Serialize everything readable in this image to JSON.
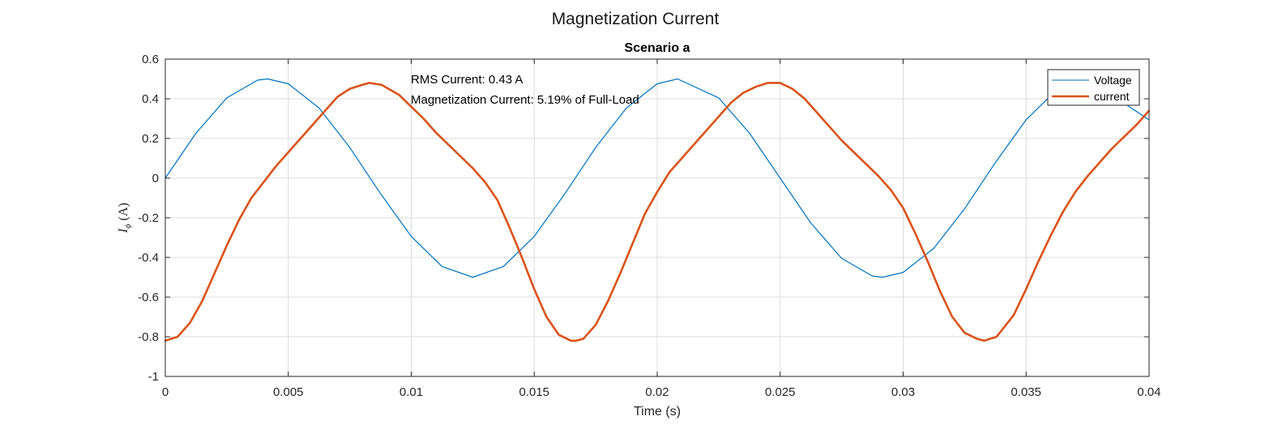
{
  "figure": {
    "title": "Magnetization Current"
  },
  "chart_data": {
    "type": "line",
    "title": "Scenario a",
    "xlabel": "Time (s)",
    "ylabel": "I_ϕ (A)",
    "ylabel_main": "I",
    "ylabel_sub": "ϕ",
    "ylabel_unit": "(A)",
    "xlim": [
      0,
      0.04
    ],
    "ylim": [
      -1,
      0.6
    ],
    "xticks": [
      0,
      0.005,
      0.01,
      0.015,
      0.02,
      0.025,
      0.03,
      0.035,
      0.04
    ],
    "xtick_labels": [
      "0",
      "0.005",
      "0.01",
      "0.015",
      "0.02",
      "0.025",
      "0.03",
      "0.035",
      "0.04"
    ],
    "yticks": [
      -1,
      -0.8,
      -0.6,
      -0.4,
      -0.2,
      0,
      0.2,
      0.4,
      0.6
    ],
    "ytick_labels": [
      "-1",
      "-0.8",
      "-0.6",
      "-0.4",
      "-0.2",
      "0",
      "0.2",
      "0.4",
      "0.6"
    ],
    "grid": true,
    "legend_position": "top-right",
    "annotations": [
      "RMS Current: 0.43 A",
      "Magnetization Current: 5.19% of Full-Load"
    ],
    "series": [
      {
        "name": "Voltage",
        "color": "#0072BD",
        "x": [
          0,
          0.00125,
          0.0025,
          0.00375,
          0.004167,
          0.005,
          0.00625,
          0.0075,
          0.00875,
          0.01,
          0.01125,
          0.0125,
          0.01375,
          0.015,
          0.01625,
          0.0175,
          0.01875,
          0.02,
          0.020833,
          0.0225,
          0.02375,
          0.025,
          0.02625,
          0.0275,
          0.02875,
          0.029167,
          0.03,
          0.03125,
          0.0325,
          0.03375,
          0.035,
          0.03625,
          0.0375,
          0.04
        ],
        "values": [
          0,
          0.227,
          0.4045,
          0.4938,
          0.5,
          0.4755,
          0.3536,
          0.1545,
          -0.0782,
          -0.2939,
          -0.4455,
          -0.5,
          -0.4455,
          -0.2939,
          -0.0782,
          0.1545,
          0.3536,
          0.4755,
          0.5,
          0.4045,
          0.227,
          0,
          -0.227,
          -0.4045,
          -0.4938,
          -0.5,
          -0.4755,
          -0.3536,
          -0.1545,
          0.0782,
          0.2939,
          0.4455,
          0.5,
          0.2939
        ]
      },
      {
        "name": "current",
        "color": "#D95319",
        "x": [
          0,
          0.0005,
          0.001,
          0.0015,
          0.002,
          0.0025,
          0.003,
          0.0035,
          0.004,
          0.0045,
          0.005,
          0.0055,
          0.006,
          0.0065,
          0.007,
          0.0075,
          0.008,
          0.0083,
          0.0088,
          0.0095,
          0.01,
          0.0105,
          0.011,
          0.0115,
          0.012,
          0.0125,
          0.013,
          0.0135,
          0.014,
          0.0145,
          0.015,
          0.0155,
          0.016,
          0.0165,
          0.0167,
          0.017,
          0.0175,
          0.018,
          0.0185,
          0.019,
          0.0195,
          0.02,
          0.0205,
          0.021,
          0.0215,
          0.022,
          0.0225,
          0.023,
          0.0235,
          0.024,
          0.0245,
          0.025,
          0.0255,
          0.026,
          0.0265,
          0.027,
          0.0275,
          0.028,
          0.0285,
          0.029,
          0.0295,
          0.03,
          0.0305,
          0.031,
          0.0315,
          0.032,
          0.0325,
          0.033,
          0.0333,
          0.0338,
          0.0345,
          0.035,
          0.0355,
          0.036,
          0.0365,
          0.037,
          0.0375,
          0.038,
          0.0385,
          0.039,
          0.0395,
          0.04
        ],
        "values": [
          -0.82,
          -0.8,
          -0.73,
          -0.62,
          -0.48,
          -0.34,
          -0.21,
          -0.1,
          -0.02,
          0.06,
          0.13,
          0.2,
          0.27,
          0.34,
          0.41,
          0.45,
          0.47,
          0.48,
          0.47,
          0.42,
          0.36,
          0.3,
          0.23,
          0.17,
          0.11,
          0.05,
          -0.02,
          -0.11,
          -0.25,
          -0.4,
          -0.56,
          -0.7,
          -0.79,
          -0.82,
          -0.82,
          -0.81,
          -0.74,
          -0.62,
          -0.48,
          -0.33,
          -0.18,
          -0.07,
          0.03,
          0.1,
          0.17,
          0.24,
          0.31,
          0.38,
          0.43,
          0.46,
          0.48,
          0.48,
          0.45,
          0.4,
          0.33,
          0.26,
          0.19,
          0.13,
          0.07,
          0.01,
          -0.06,
          -0.15,
          -0.28,
          -0.42,
          -0.57,
          -0.7,
          -0.78,
          -0.81,
          -0.82,
          -0.8,
          -0.69,
          -0.56,
          -0.42,
          -0.29,
          -0.17,
          -0.07,
          0.01,
          0.08,
          0.15,
          0.21,
          0.27,
          0.34
        ]
      }
    ]
  }
}
